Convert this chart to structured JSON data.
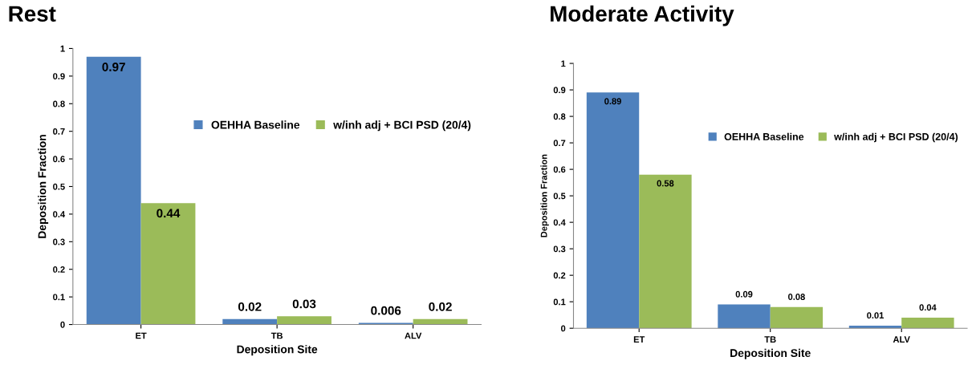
{
  "chart_data": [
    {
      "type": "bar",
      "title": "Rest",
      "xlabel": "Deposition Site",
      "ylabel": "Deposition Fraction",
      "categories": [
        "ET",
        "TB",
        "ALV"
      ],
      "series": [
        {
          "name": "OEHHA Baseline",
          "color": "#4f81bd",
          "values": [
            0.97,
            0.02,
            0.006
          ]
        },
        {
          "name": "w/inh adj + BCI PSD (20/4)",
          "color": "#9bbb59",
          "values": [
            0.44,
            0.03,
            0.02
          ]
        }
      ],
      "ylim": [
        0,
        1
      ],
      "yticks": [
        0,
        0.1,
        0.2,
        0.3,
        0.4,
        0.5,
        0.6,
        0.7,
        0.8,
        0.9,
        1
      ],
      "data_labels": true,
      "legend": "right",
      "grid": false
    },
    {
      "type": "bar",
      "title": "Moderate Activity",
      "xlabel": "Deposition Site",
      "ylabel": "Deposition Fraction",
      "categories": [
        "ET",
        "TB",
        "ALV"
      ],
      "series": [
        {
          "name": "OEHHA Baseline",
          "color": "#4f81bd",
          "values": [
            0.89,
            0.09,
            0.01
          ]
        },
        {
          "name": "w/inh adj + BCI PSD (20/4)",
          "color": "#9bbb59",
          "values": [
            0.58,
            0.08,
            0.04
          ]
        }
      ],
      "ylim": [
        0,
        1
      ],
      "yticks": [
        0,
        0.1,
        0.2,
        0.3,
        0.4,
        0.5,
        0.6,
        0.7,
        0.8,
        0.9,
        1
      ],
      "data_labels": true,
      "legend": "right",
      "grid": false
    }
  ]
}
